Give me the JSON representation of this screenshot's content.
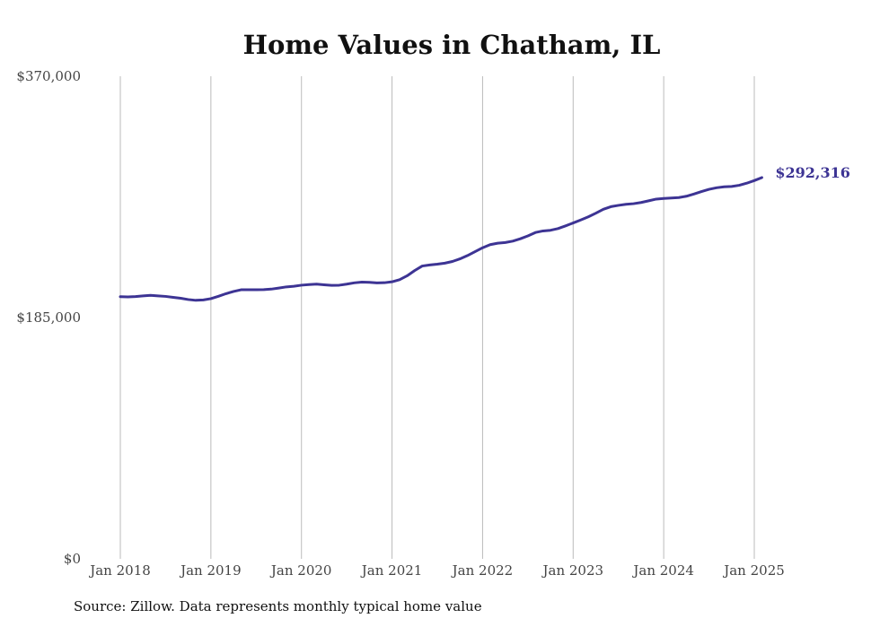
{
  "chart_data": {
    "type": "line",
    "title": "Home Values in Chatham, IL",
    "xlabel": "",
    "ylabel": "",
    "ylim": [
      0,
      370000
    ],
    "y_ticks": [
      0,
      185000,
      370000
    ],
    "y_tick_labels": [
      "$0",
      "$185,000",
      "$370,000"
    ],
    "x_ticks": [
      "2018-01",
      "2019-01",
      "2020-01",
      "2021-01",
      "2022-01",
      "2023-01",
      "2024-01",
      "2025-01"
    ],
    "x_tick_labels": [
      "Jan 2018",
      "Jan 2019",
      "Jan 2020",
      "Jan 2021",
      "Jan 2022",
      "Jan 2023",
      "Jan 2024",
      "Jan 2025"
    ],
    "grid": "vertical",
    "line_color": "#3d3494",
    "series": [
      {
        "values": [
          [
            "2018-01",
            201000
          ],
          [
            "2018-02",
            200800
          ],
          [
            "2018-03",
            201100
          ],
          [
            "2018-04",
            201600
          ],
          [
            "2018-05",
            202000
          ],
          [
            "2018-06",
            201600
          ],
          [
            "2018-07",
            201200
          ],
          [
            "2018-08",
            200500
          ],
          [
            "2018-09",
            199800
          ],
          [
            "2018-10",
            198800
          ],
          [
            "2018-11",
            198200
          ],
          [
            "2018-12",
            198500
          ],
          [
            "2019-01",
            199500
          ],
          [
            "2019-02",
            201300
          ],
          [
            "2019-03",
            203300
          ],
          [
            "2019-04",
            205000
          ],
          [
            "2019-05",
            206300
          ],
          [
            "2019-06",
            206300
          ],
          [
            "2019-07",
            206300
          ],
          [
            "2019-08",
            206400
          ],
          [
            "2019-09",
            206800
          ],
          [
            "2019-10",
            207600
          ],
          [
            "2019-11",
            208500
          ],
          [
            "2019-12",
            209000
          ],
          [
            "2020-01",
            209800
          ],
          [
            "2020-02",
            210300
          ],
          [
            "2020-03",
            210600
          ],
          [
            "2020-04",
            210100
          ],
          [
            "2020-05",
            209700
          ],
          [
            "2020-06",
            209800
          ],
          [
            "2020-07",
            210600
          ],
          [
            "2020-08",
            211600
          ],
          [
            "2020-09",
            212200
          ],
          [
            "2020-10",
            212000
          ],
          [
            "2020-11",
            211600
          ],
          [
            "2020-12",
            211700
          ],
          [
            "2021-01",
            212400
          ],
          [
            "2021-02",
            214000
          ],
          [
            "2021-03",
            217000
          ],
          [
            "2021-04",
            221000
          ],
          [
            "2021-05",
            224500
          ],
          [
            "2021-06",
            225300
          ],
          [
            "2021-07",
            225900
          ],
          [
            "2021-08",
            226700
          ],
          [
            "2021-09",
            228000
          ],
          [
            "2021-10",
            230000
          ],
          [
            "2021-11",
            232500
          ],
          [
            "2021-12",
            235500
          ],
          [
            "2022-01",
            238500
          ],
          [
            "2022-02",
            240900
          ],
          [
            "2022-03",
            242000
          ],
          [
            "2022-04",
            242500
          ],
          [
            "2022-05",
            243600
          ],
          [
            "2022-06",
            245400
          ],
          [
            "2022-07",
            247600
          ],
          [
            "2022-08",
            250200
          ],
          [
            "2022-09",
            251400
          ],
          [
            "2022-10",
            251900
          ],
          [
            "2022-11",
            253200
          ],
          [
            "2022-12",
            255300
          ],
          [
            "2023-01",
            257500
          ],
          [
            "2023-02",
            259800
          ],
          [
            "2023-03",
            262200
          ],
          [
            "2023-04",
            265000
          ],
          [
            "2023-05",
            268000
          ],
          [
            "2023-06",
            270000
          ],
          [
            "2023-07",
            271000
          ],
          [
            "2023-08",
            271800
          ],
          [
            "2023-09",
            272300
          ],
          [
            "2023-10",
            273200
          ],
          [
            "2023-11",
            274500
          ],
          [
            "2023-12",
            275800
          ],
          [
            "2024-01",
            276300
          ],
          [
            "2024-02",
            276600
          ],
          [
            "2024-03",
            277000
          ],
          [
            "2024-04",
            278000
          ],
          [
            "2024-05",
            279700
          ],
          [
            "2024-06",
            281600
          ],
          [
            "2024-07",
            283300
          ],
          [
            "2024-08",
            284500
          ],
          [
            "2024-09",
            285200
          ],
          [
            "2024-10",
            285500
          ],
          [
            "2024-11",
            286400
          ],
          [
            "2024-12",
            288000
          ],
          [
            "2025-01",
            290000
          ],
          [
            "2025-02",
            292316
          ]
        ]
      }
    ],
    "end_label": "$292,316",
    "source": "Source: Zillow. Data represents monthly typical home value"
  }
}
